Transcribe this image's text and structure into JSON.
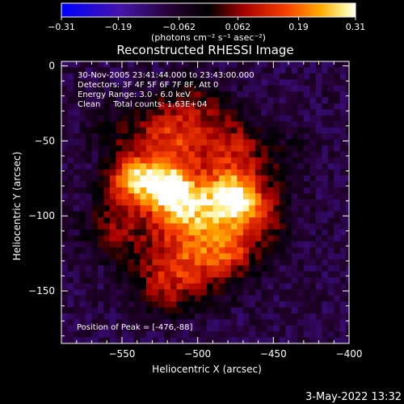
{
  "chart_data": {
    "type": "heatmap",
    "title": "Reconstructed RHESSI Image",
    "xlabel": "Heliocentric X (arcsec)",
    "ylabel": "Heliocentric Y (arcsec)",
    "xlim": [
      -590,
      -400
    ],
    "ylim": [
      -185,
      3
    ],
    "x_ticks": [
      -550,
      -500,
      -450,
      -400
    ],
    "y_ticks": [
      0,
      -50,
      -100,
      -150
    ],
    "x_tick_labels": [
      "−550",
      "−500",
      "−450",
      "−400"
    ],
    "y_tick_labels": [
      "0",
      "−50",
      "−100",
      "−150"
    ],
    "annotations": [
      "30-Nov-2005 23:41:44.000 to 23:43:00.000",
      "Detectors: 3F 4F 5F 6F 7F 8F, Att 0",
      "Energy Range: 3.0 - 6.0 keV",
      "Clean     Total counts: 1.63E+04"
    ],
    "peak_text": "Position of Peak = [-476,-88]",
    "peak": [
      -476,
      -88
    ],
    "colorbar": {
      "range": [
        -0.31,
        0.31
      ],
      "ticks": [
        -0.31,
        -0.19,
        -0.062,
        0.062,
        0.19,
        0.31
      ],
      "tick_labels": [
        "−0.31",
        "−0.19",
        "−0.062",
        "0.062",
        "0.19",
        "0.31"
      ],
      "units": "(photons cm⁻² s⁻¹ asec⁻²)"
    },
    "sources": [
      {
        "x": -476,
        "y": -88,
        "peak": 0.31,
        "sigma": 11
      },
      {
        "x": -522,
        "y": -80,
        "peak": 0.25,
        "sigma": 12
      },
      {
        "x": -545,
        "y": -75,
        "peak": 0.2,
        "sigma": 11
      },
      {
        "x": -505,
        "y": -95,
        "peak": 0.18,
        "sigma": 13
      },
      {
        "x": -480,
        "y": -120,
        "peak": 0.14,
        "sigma": 12
      },
      {
        "x": -475,
        "y": -55,
        "peak": 0.1,
        "sigma": 14
      },
      {
        "x": -520,
        "y": -45,
        "peak": 0.12,
        "sigma": 16
      },
      {
        "x": -505,
        "y": -130,
        "peak": 0.12,
        "sigma": 16
      },
      {
        "x": -525,
        "y": -150,
        "peak": 0.09,
        "sigma": 14
      },
      {
        "x": -455,
        "y": -100,
        "peak": 0.1,
        "sigma": 13
      },
      {
        "x": -560,
        "y": -110,
        "peak": 0.08,
        "sigma": 14
      },
      {
        "x": -500,
        "y": -25,
        "peak": 0.07,
        "sigma": 14
      },
      {
        "x": -560,
        "y": -40,
        "peak": 0.06,
        "sigma": 12
      },
      {
        "x": -440,
        "y": -60,
        "peak": 0.05,
        "sigma": 12
      }
    ],
    "background": -0.09,
    "envelope": {
      "cx": -505,
      "cy": -90,
      "rx": 70,
      "ry": 80
    },
    "pixel_arcsec": 4
  },
  "footer": {
    "date": "3-May-2022 13:32"
  }
}
